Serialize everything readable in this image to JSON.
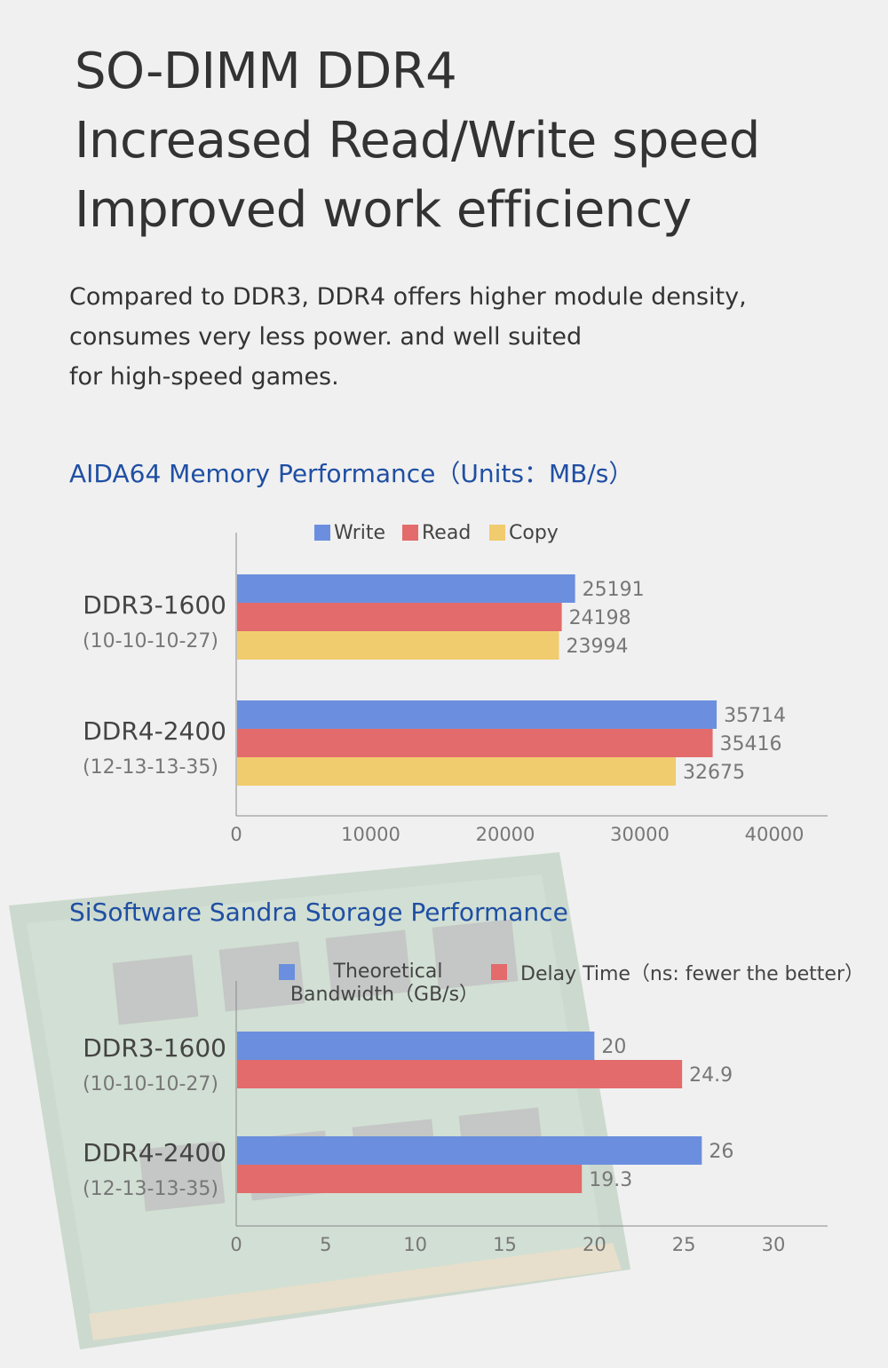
{
  "header": {
    "title_lines": [
      "SO-DIMM DDR4",
      "Increased Read/Write speed",
      "Improved work efficiency"
    ],
    "description_lines": [
      "Compared to DDR3, DDR4 offers higher module density,",
      "consumes very less power. and well suited",
      "for high-speed games."
    ]
  },
  "colors": {
    "blue": "#6b8fde",
    "red": "#e36b6b",
    "yellow": "#f1cc6e",
    "title_blue": "#1f4fa3",
    "text": "#333333",
    "axis_text": "#777777"
  },
  "chart_data": [
    {
      "type": "bar",
      "orientation": "horizontal",
      "title": "AIDA64 Memory Performance（Units：MB/s）",
      "categories": [
        "DDR3-1600",
        "DDR4-2400"
      ],
      "category_sublabels": [
        "(10-10-10-27)",
        "(12-13-13-35)"
      ],
      "series": [
        {
          "name": "Write",
          "color": "#6b8fde",
          "values": [
            25191,
            35714
          ]
        },
        {
          "name": "Read",
          "color": "#e36b6b",
          "values": [
            24198,
            35416
          ]
        },
        {
          "name": "Copy",
          "color": "#f1cc6e",
          "values": [
            23994,
            32675
          ]
        }
      ],
      "xlim": [
        0,
        43000
      ],
      "xticks": [
        0,
        10000,
        20000,
        30000,
        40000
      ],
      "legend_position": "top"
    },
    {
      "type": "bar",
      "orientation": "horizontal",
      "title": "SiSoftware Sandra Storage Performance",
      "categories": [
        "DDR3-1600",
        "DDR4-2400"
      ],
      "category_sublabels": [
        "(10-10-10-27)",
        "(12-13-13-35)"
      ],
      "series": [
        {
          "name": "Theoretical Bandwidth（GB/s）",
          "legend_lines": [
            "Theoretical",
            "Bandwidth（GB/s）"
          ],
          "color": "#6b8fde",
          "values": [
            20,
            26
          ]
        },
        {
          "name": "Delay Time（ns: fewer the better）",
          "legend_lines": [
            "Delay Time（ns: fewer the better）"
          ],
          "color": "#e36b6b",
          "values": [
            24.9,
            19.3
          ]
        }
      ],
      "xlim": [
        0,
        32
      ],
      "xticks": [
        0,
        5,
        10,
        15,
        20,
        25,
        30
      ],
      "legend_position": "top"
    }
  ]
}
